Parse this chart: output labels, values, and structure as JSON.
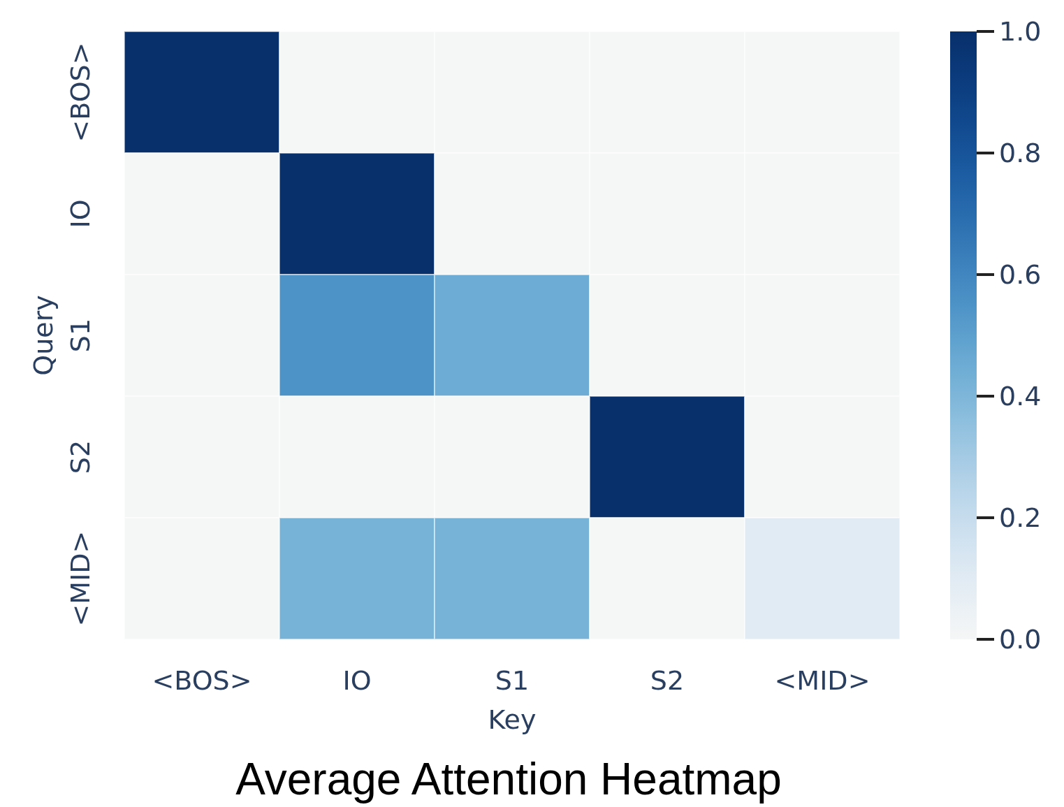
{
  "chart_data": {
    "type": "heatmap",
    "title": "Average Attention Heatmap",
    "xlabel": "Key",
    "ylabel": "Query",
    "categories": [
      "<BOS>",
      "IO",
      "S1",
      "S2",
      "<MID>"
    ],
    "y_categories": [
      "<BOS>",
      "IO",
      "S1",
      "S2",
      "<MID>"
    ],
    "cells": [
      [
        1,
        0,
        0,
        0,
        0
      ],
      [
        0,
        1,
        0,
        0,
        0
      ],
      [
        0,
        0.55,
        0.45,
        0,
        0
      ],
      [
        0,
        0,
        0,
        1,
        0
      ],
      [
        0,
        0.42,
        0.42,
        0,
        0.1
      ]
    ],
    "clim": [
      0,
      1
    ],
    "cticks": [
      {
        "value": 0,
        "label": "0.0"
      },
      {
        "value": 0.2,
        "label": "0.2"
      },
      {
        "value": 0.4,
        "label": "0.4"
      },
      {
        "value": 0.6,
        "label": "0.6"
      },
      {
        "value": 0.8,
        "label": "0.8"
      },
      {
        "value": 1,
        "label": "1.0"
      }
    ]
  }
}
